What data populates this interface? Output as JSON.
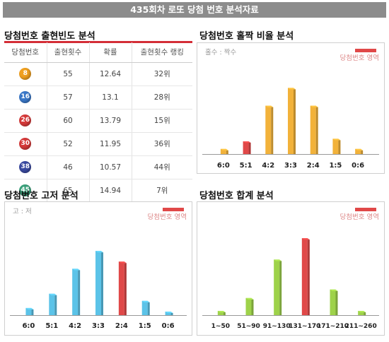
{
  "banner": "435회차 로또 당첨 번호 분석자료",
  "freq_section": {
    "title": "당첨번호 출현빈도 분석",
    "headers": [
      "당첨번호",
      "출현횟수",
      "확률",
      "출현횟수 랭킹"
    ],
    "rows": [
      {
        "num": "8",
        "count": "55",
        "prob": "12.64",
        "rank": "32위",
        "color": "#f0a020"
      },
      {
        "num": "16",
        "count": "57",
        "prob": "13.1",
        "rank": "28위",
        "color": "#3a78c8"
      },
      {
        "num": "26",
        "count": "60",
        "prob": "13.79",
        "rank": "15위",
        "color": "#d63a3a"
      },
      {
        "num": "30",
        "count": "52",
        "prob": "11.95",
        "rank": "36위",
        "color": "#d63a3a"
      },
      {
        "num": "38",
        "count": "46",
        "prob": "10.57",
        "rank": "44위",
        "color": "#3a4aa0"
      },
      {
        "num": "45",
        "count": "65",
        "prob": "14.94",
        "rank": "7위",
        "color": "#3aa07a"
      }
    ]
  },
  "legend_label": "당첨번호 영역",
  "highlight_color": "#e04848",
  "chart_data": [
    {
      "type": "bar",
      "title": "당첨번호 홀짝 비율 분석",
      "corner_label": "홀수 : 짝수",
      "categories": [
        "6:0",
        "5:1",
        "4:2",
        "3:3",
        "2:4",
        "1:5",
        "0:6"
      ],
      "values": [
        2,
        5,
        19,
        26,
        19,
        6,
        2
      ],
      "highlight_index": 1,
      "bar_color": "#f2b23a",
      "ylim": [
        0,
        30
      ]
    },
    {
      "type": "bar",
      "title": "당첨번호 고저 분석",
      "corner_label": "고 : 저",
      "categories": [
        "6:0",
        "5:1",
        "4:2",
        "3:3",
        "2:4",
        "1:5",
        "0:6"
      ],
      "values": [
        2,
        6,
        13,
        18,
        15,
        4,
        1
      ],
      "highlight_index": 4,
      "bar_color": "#5bc3e8",
      "ylim": [
        0,
        20
      ]
    },
    {
      "type": "bar",
      "title": "당첨번호 합계 분석",
      "corner_label": "",
      "categories": [
        "1~50",
        "51~90",
        "91~130",
        "131~170",
        "171~210",
        "211~260"
      ],
      "values": [
        1,
        4,
        13,
        18,
        6,
        1
      ],
      "highlight_index": 3,
      "bar_color": "#9ed24a",
      "ylim": [
        0,
        20
      ]
    }
  ]
}
